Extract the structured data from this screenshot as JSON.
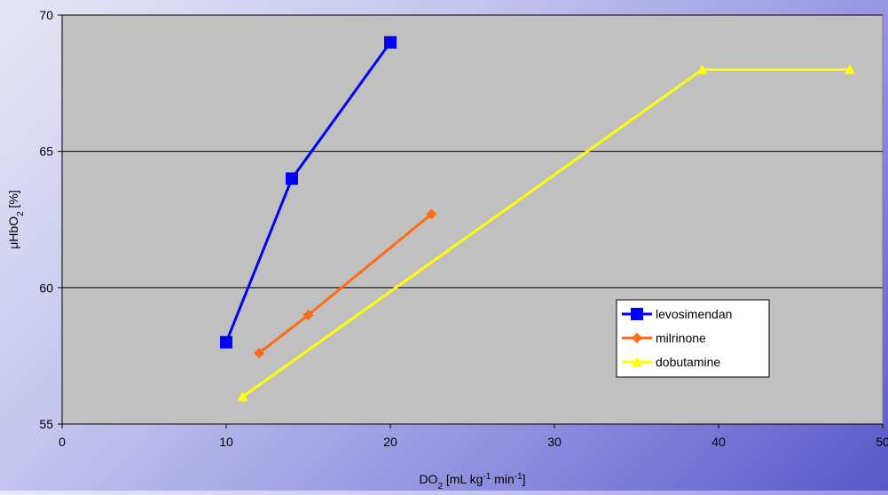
{
  "chart_data": {
    "type": "line",
    "xlabel": {
      "base": "DO",
      "sub": "2",
      "mid1": " [mL kg",
      "sup1": "-1",
      "mid2": " min",
      "sup2": "-1",
      "end": "]"
    },
    "ylabel": {
      "base": "μHbO",
      "sub": "2",
      "end": " [%]"
    },
    "xlim": [
      0,
      50
    ],
    "ylim": [
      55,
      70
    ],
    "xticks": [
      0,
      10,
      20,
      30,
      40,
      50
    ],
    "yticks": [
      55,
      60,
      65,
      70
    ],
    "grid": "horizontal",
    "legend_position": "right",
    "plot_background": "#c0c0c0",
    "series": [
      {
        "name": "levosimendan",
        "color": "#0000ff",
        "marker": "square",
        "points": [
          [
            10,
            58
          ],
          [
            14,
            64
          ],
          [
            20,
            69
          ]
        ]
      },
      {
        "name": "milrinone",
        "color": "#ff6a14",
        "marker": "diamond",
        "points": [
          [
            12,
            57.6
          ],
          [
            15,
            59
          ],
          [
            22.5,
            62.7
          ]
        ]
      },
      {
        "name": "dobutamine",
        "color": "#ffff00",
        "marker": "triangle",
        "points": [
          [
            11,
            56
          ],
          [
            39,
            68
          ],
          [
            48,
            68
          ]
        ]
      }
    ]
  }
}
